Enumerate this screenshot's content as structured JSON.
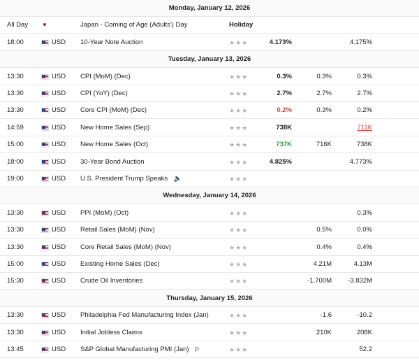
{
  "days": [
    {
      "title": "Monday, January 12, 2026",
      "rows": [
        {
          "time": "All Day",
          "flag": "jp",
          "event": "Japan - Coming of Age (Adults') Day",
          "importance": "Holiday"
        },
        {
          "time": "18:00",
          "flag": "us",
          "currency": "USD",
          "event": "10-Year Note Auction",
          "actual": "4.173%",
          "previous": "4.175%"
        }
      ]
    },
    {
      "title": "Tuesday, January 13, 2026",
      "rows": [
        {
          "time": "13:30",
          "flag": "us",
          "currency": "USD",
          "event": "CPI (MoM) (Dec)",
          "actual": "0.3%",
          "forecast": "0.3%",
          "previous": "0.3%"
        },
        {
          "time": "13:30",
          "flag": "us",
          "currency": "USD",
          "event": "CPI (YoY) (Dec)",
          "actual": "2.7%",
          "forecast": "2.7%",
          "previous": "2.7%"
        },
        {
          "time": "13:30",
          "flag": "us",
          "currency": "USD",
          "event": "Core CPI (MoM) (Dec)",
          "actual": "0.2%",
          "actual_trend": "negative",
          "forecast": "0.3%",
          "previous": "0.2%"
        },
        {
          "time": "14:59",
          "flag": "us",
          "currency": "USD",
          "event": "New Home Sales (Sep)",
          "actual": "738K",
          "previous": "711K",
          "previous_trend": "negative"
        },
        {
          "time": "15:00",
          "flag": "us",
          "currency": "USD",
          "event": "New Home Sales (Oct)",
          "actual": "737K",
          "actual_trend": "positive",
          "forecast": "716K",
          "previous": "738K"
        },
        {
          "time": "18:00",
          "flag": "us",
          "currency": "USD",
          "event": "30-Year Bond Auction",
          "actual": "4.825%",
          "previous": "4.773%"
        },
        {
          "time": "19:00",
          "flag": "us",
          "currency": "USD",
          "event": "U.S. President Trump Speaks",
          "speech": true
        }
      ]
    },
    {
      "title": "Wednesday, January 14, 2026",
      "rows": [
        {
          "time": "13:30",
          "flag": "us",
          "currency": "USD",
          "event": "PPI (MoM) (Oct)",
          "previous": "0.3%"
        },
        {
          "time": "13:30",
          "flag": "us",
          "currency": "USD",
          "event": "Retail Sales (MoM) (Nov)",
          "forecast": "0.5%",
          "previous": "0.0%"
        },
        {
          "time": "13:30",
          "flag": "us",
          "currency": "USD",
          "event": "Core Retail Sales (MoM) (Nov)",
          "forecast": "0.4%",
          "previous": "0.4%"
        },
        {
          "time": "15:00",
          "flag": "us",
          "currency": "USD",
          "event": "Existing Home Sales (Dec)",
          "forecast": "4.21M",
          "previous": "4.13M"
        },
        {
          "time": "15:30",
          "flag": "us",
          "currency": "USD",
          "event": "Crude Oil Inventories",
          "forecast": "-1.700M",
          "previous": "-3.832M"
        }
      ]
    },
    {
      "title": "Thursday, January 15, 2026",
      "rows": [
        {
          "time": "13:30",
          "flag": "us",
          "currency": "USD",
          "event": "Philadelphia Fed Manufacturing Index (Jan)",
          "forecast": "-1.6",
          "previous": "-10.2"
        },
        {
          "time": "13:30",
          "flag": "us",
          "currency": "USD",
          "event": "Initial Jobless Claims",
          "forecast": "210K",
          "previous": "208K"
        },
        {
          "time": "13:45",
          "flag": "us",
          "currency": "USD",
          "event": "S&P Global Manufacturing PMI (Jan)",
          "badge": "P",
          "previous": "52.2"
        }
      ]
    }
  ]
}
